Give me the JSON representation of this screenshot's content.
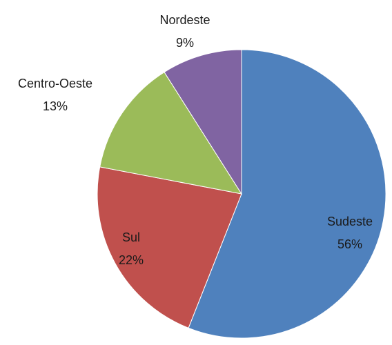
{
  "chart_data": {
    "type": "pie",
    "categories": [
      "Sudeste",
      "Sul",
      "Centro-Oeste",
      "Nordeste"
    ],
    "values": [
      56,
      22,
      13,
      9
    ],
    "value_labels": [
      "56%",
      "22%",
      "13%",
      "9%"
    ],
    "colors": [
      "#4f81bd",
      "#c0504d",
      "#9bbb59",
      "#8064a2"
    ]
  }
}
